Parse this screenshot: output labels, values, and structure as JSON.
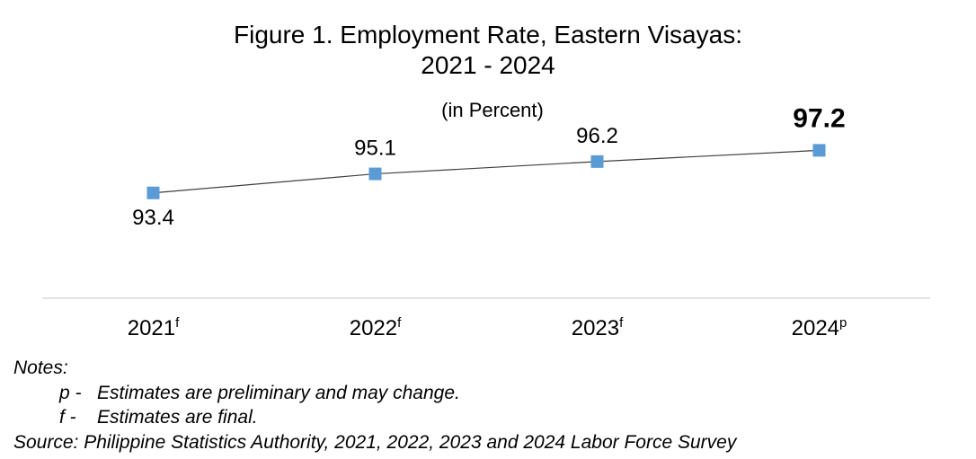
{
  "chart_data": {
    "type": "line",
    "title_line1": "Figure 1. Employment Rate, Eastern Visayas:",
    "title_line2": "2021 - 2024",
    "subtitle": "(in Percent)",
    "categories": [
      "2021",
      "2022",
      "2023",
      "2024"
    ],
    "category_superscripts": [
      "f",
      "f",
      "f",
      "p"
    ],
    "series": [
      {
        "values": [
          93.4,
          95.1,
          96.2,
          97.2
        ],
        "data_labels": [
          "93.4",
          "95.1",
          "96.2",
          "97.2"
        ],
        "color": "#5B9BD5",
        "line_color": "#404040",
        "marker": "square"
      }
    ],
    "highlight_last_label": true,
    "ylim": [
      84,
      101
    ],
    "grid": false
  },
  "notes": {
    "heading": "Notes:",
    "items": [
      {
        "key": "p -",
        "text": "Estimates are preliminary and may change."
      },
      {
        "key": "f -",
        "text": "Estimates are final."
      }
    ],
    "source": "Source: Philippine Statistics Authority, 2021, 2022, 2023 and 2024 Labor Force Survey"
  }
}
